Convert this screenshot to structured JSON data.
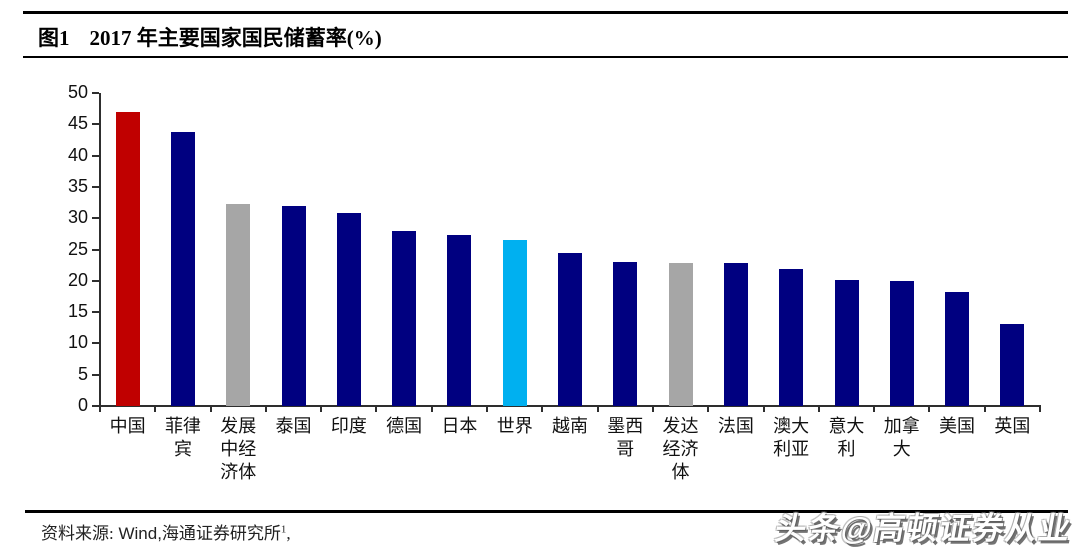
{
  "header": {
    "figure_label": "图1",
    "title": "2017 年主要国家国民储蓄率(%)"
  },
  "chart_data": {
    "type": "bar",
    "title": "图1 2017 年主要国家国民储蓄率(%)",
    "categories": [
      "中国",
      "菲律宾",
      "发展中经济体",
      "泰国",
      "印度",
      "德国",
      "日本",
      "世界",
      "越南",
      "墨西哥",
      "发达经济体",
      "法国",
      "澳大利亚",
      "意大利",
      "加拿大",
      "美国",
      "英国"
    ],
    "values": [
      47.0,
      43.8,
      32.3,
      31.9,
      30.8,
      27.9,
      27.4,
      26.6,
      24.5,
      23.0,
      22.8,
      22.8,
      21.9,
      20.1,
      20.0,
      18.2,
      13.1
    ],
    "bar_colors": [
      "#c00000",
      "#000080",
      "#a6a6a6",
      "#000080",
      "#000080",
      "#000080",
      "#000080",
      "#00b0f0",
      "#000080",
      "#000080",
      "#a6a6a6",
      "#000080",
      "#000080",
      "#000080",
      "#000080",
      "#000080",
      "#000080"
    ],
    "colors": {
      "highlight_red": "#c00000",
      "navy_default": "#000080",
      "aggregate_gray": "#a6a6a6",
      "world_cyan": "#00b0f0"
    },
    "xlabel": "",
    "ylabel": "",
    "ylim": [
      0,
      50
    ],
    "yticks": [
      0,
      5,
      10,
      15,
      20,
      25,
      30,
      35,
      40,
      45,
      50
    ],
    "grid": false,
    "legend": "none"
  },
  "footer": {
    "source_label": "资料来源:",
    "source_wind": " Wind,",
    "source_org": "海通证券研究所",
    "source_sup": "1",
    "source_tail": ",",
    "watermark": "头条@高顿证券从业"
  }
}
